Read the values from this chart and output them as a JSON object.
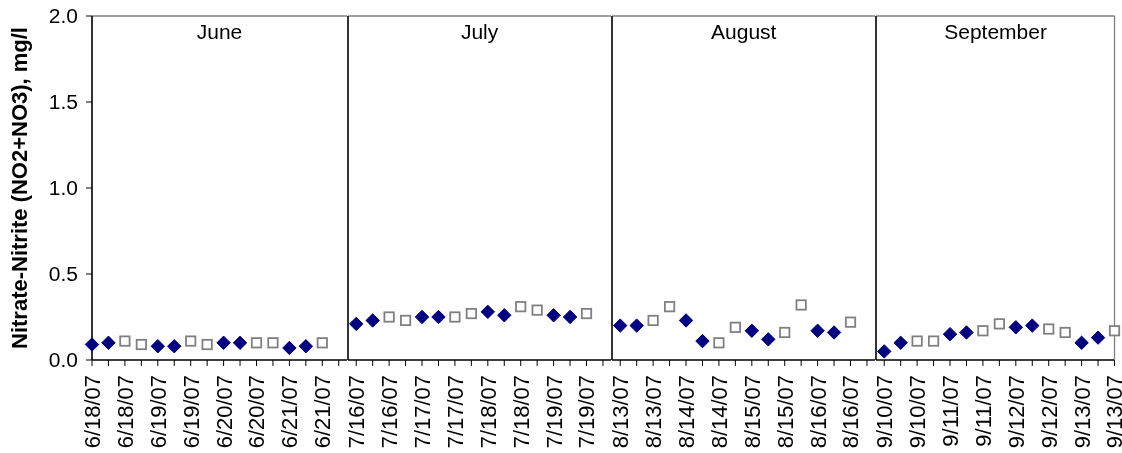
{
  "chart_data": [
    {
      "type": "scatter",
      "title": "June",
      "ylabel": "Nitrate-Nitrite (NO2+NO3), mg/l",
      "categories": [
        "6/18/07",
        null,
        "6/18/07",
        null,
        "6/19/07",
        null,
        "6/19/07",
        null,
        "6/20/07",
        null,
        "6/20/07",
        null,
        "6/21/07",
        null,
        "6/21/07",
        null
      ],
      "series": [
        {
          "color": "#000080",
          "marker": "diamond",
          "values": [
            0.09,
            0.1,
            null,
            null,
            0.08,
            0.08,
            null,
            null,
            0.1,
            0.1,
            null,
            null,
            0.07,
            0.08,
            null,
            null
          ]
        },
        {
          "color": "#808080",
          "marker": "square",
          "values": [
            null,
            null,
            0.11,
            0.09,
            null,
            null,
            0.11,
            0.09,
            null,
            null,
            0.1,
            0.1,
            null,
            null,
            0.1,
            null
          ]
        }
      ],
      "ylim": [
        0,
        2
      ],
      "yticks": [
        {
          "value": 0,
          "label": "0.0"
        },
        {
          "value": 0.5,
          "label": "0.5"
        },
        {
          "value": 1,
          "label": "1.0"
        },
        {
          "value": 1.5,
          "label": "1.5"
        },
        {
          "value": 2,
          "label": "2.0"
        }
      ]
    },
    {
      "type": "scatter",
      "title": "July",
      "tick_labels": "x",
      "categories": [
        "7/16/07",
        null,
        "7/16/07",
        null,
        "7/17/07",
        null,
        "7/17/07",
        null,
        "7/18/07",
        null,
        "7/18/07",
        null,
        "7/19/07",
        null,
        "7/19/07",
        null
      ],
      "series": [
        {
          "color": "#000080",
          "marker": "diamond",
          "values": [
            0.21,
            0.23,
            null,
            null,
            0.25,
            0.25,
            null,
            null,
            0.28,
            0.26,
            null,
            null,
            0.26,
            0.25,
            null,
            null
          ]
        },
        {
          "color": "#808080",
          "marker": "square",
          "values": [
            null,
            null,
            0.25,
            0.23,
            null,
            null,
            0.25,
            0.27,
            null,
            null,
            0.31,
            0.29,
            null,
            null,
            0.27,
            null
          ]
        }
      ],
      "ylim": [
        0,
        2
      ]
    },
    {
      "type": "scatter",
      "title": "August",
      "tick_labels": "x",
      "categories": [
        "8/13/07",
        null,
        "8/13/07",
        null,
        "8/14/07",
        null,
        "8/14/07",
        null,
        "8/15/07",
        null,
        "8/15/07",
        null,
        "8/16/07",
        null,
        "8/16/07",
        null
      ],
      "series": [
        {
          "color": "#000080",
          "marker": "diamond",
          "values": [
            0.2,
            0.2,
            null,
            null,
            0.23,
            0.11,
            null,
            null,
            0.17,
            0.12,
            null,
            null,
            0.17,
            0.16,
            null,
            null
          ]
        },
        {
          "color": "#808080",
          "marker": "square",
          "values": [
            null,
            null,
            0.23,
            0.31,
            null,
            null,
            0.1,
            0.19,
            null,
            null,
            0.16,
            0.32,
            null,
            null,
            0.22,
            null
          ]
        }
      ],
      "ylim": [
        0,
        2
      ]
    },
    {
      "type": "scatter",
      "title": "September",
      "tick_labels": "x",
      "categories": [
        "9/10/07",
        null,
        "9/10/07",
        null,
        "9/11/07",
        null,
        "9/11/07",
        null,
        "9/12/07",
        null,
        "9/12/07",
        null,
        "9/13/07",
        null,
        "9/13/07"
      ],
      "series": [
        {
          "color": "#000080",
          "marker": "diamond",
          "values": [
            0.05,
            0.1,
            null,
            null,
            0.15,
            0.16,
            null,
            null,
            0.19,
            0.2,
            null,
            null,
            0.1,
            0.13,
            null
          ]
        },
        {
          "color": "#808080",
          "marker": "square",
          "values": [
            null,
            null,
            0.11,
            0.11,
            null,
            null,
            0.17,
            0.21,
            null,
            null,
            0.18,
            0.16,
            null,
            null,
            0.17
          ]
        }
      ],
      "ylim": [
        0,
        2
      ]
    }
  ]
}
